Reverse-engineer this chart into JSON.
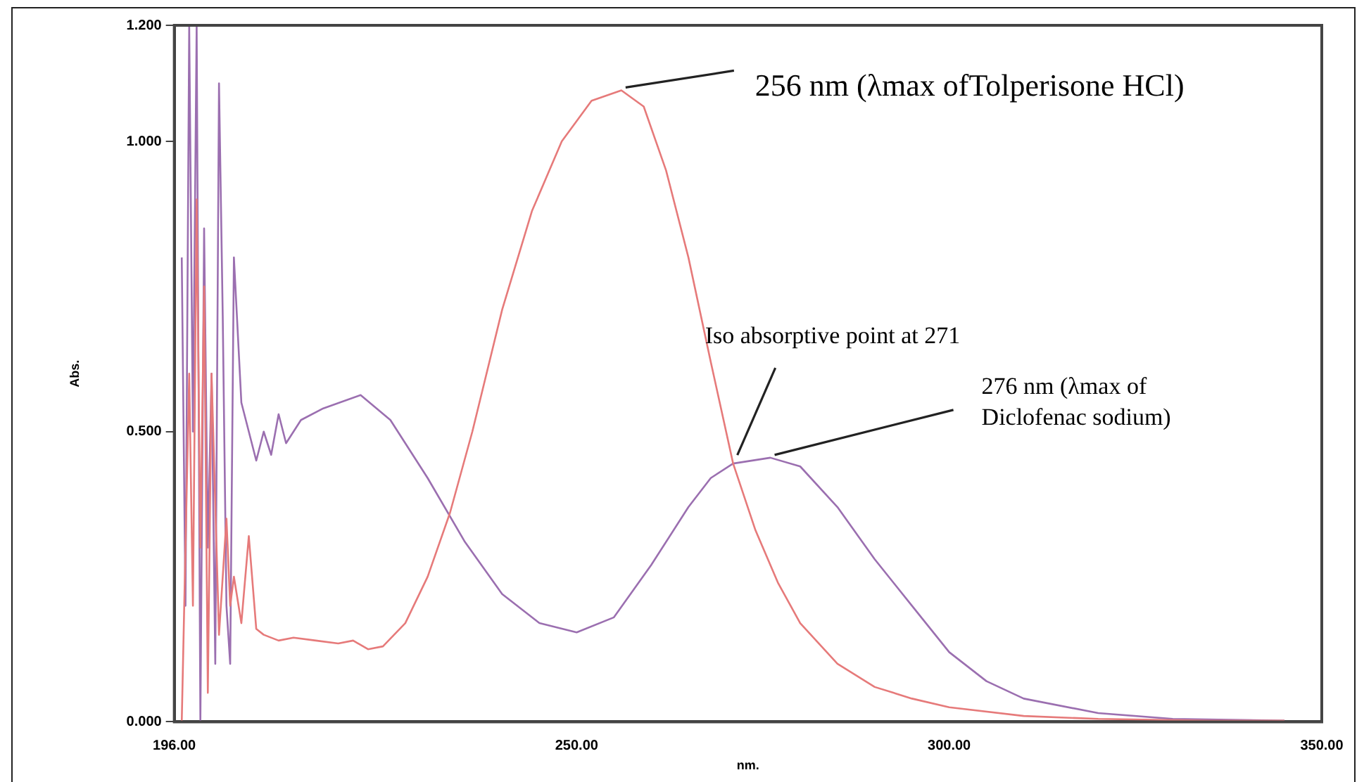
{
  "chart_data": {
    "type": "line",
    "xlabel": "nm.",
    "ylabel": "Abs.",
    "xlim": [
      196,
      350
    ],
    "xticks": [
      {
        "value": 196,
        "label": "196.00"
      },
      {
        "value": 250,
        "label": "250.00"
      },
      {
        "value": 300,
        "label": "300.00"
      },
      {
        "value": 350,
        "label": "350.00"
      }
    ],
    "ylim": [
      0,
      1.2
    ],
    "yticks": [
      {
        "value": 0,
        "label": "0.000"
      },
      {
        "value": 0.5,
        "label": "0.500"
      },
      {
        "value": 1,
        "label": "1.000"
      },
      {
        "value": 1.2,
        "label": "1.200"
      }
    ],
    "marker": "none",
    "line_style": "solid",
    "series": [
      {
        "color": "#e67a7a",
        "x": [
          197,
          198,
          198.5,
          199,
          199.5,
          200,
          200.5,
          201,
          202,
          203,
          203.5,
          204,
          205,
          206,
          207,
          208,
          210,
          212,
          215,
          218,
          220,
          222,
          224,
          227,
          230,
          233,
          236,
          240,
          244,
          248,
          252,
          256,
          259,
          262,
          265,
          268,
          271,
          274,
          277,
          280,
          285,
          290,
          295,
          300,
          310,
          320,
          335,
          345
        ],
        "values": [
          0.0,
          0.6,
          0.2,
          0.9,
          0.3,
          0.75,
          0.05,
          0.6,
          0.15,
          0.35,
          0.2,
          0.25,
          0.17,
          0.32,
          0.16,
          0.15,
          0.14,
          0.145,
          0.14,
          0.135,
          0.14,
          0.125,
          0.13,
          0.17,
          0.25,
          0.36,
          0.5,
          0.71,
          0.88,
          1.0,
          1.07,
          1.088,
          1.06,
          0.95,
          0.8,
          0.62,
          0.445,
          0.33,
          0.24,
          0.17,
          0.1,
          0.06,
          0.04,
          0.025,
          0.01,
          0.005,
          0.002,
          0.002
        ]
      },
      {
        "color": "#9b6fb0",
        "x": [
          197,
          197.5,
          198,
          198.5,
          199,
          199.5,
          200,
          200.5,
          201,
          201.5,
          202,
          202.5,
          203,
          203.5,
          204,
          205,
          206,
          207,
          208,
          209,
          210,
          211,
          213,
          216,
          221,
          225,
          230,
          235,
          240,
          245,
          250,
          255,
          260,
          265,
          268,
          271,
          276,
          280,
          285,
          290,
          295,
          300,
          305,
          310,
          320,
          330,
          345
        ],
        "values": [
          0.8,
          0.2,
          1.2,
          0.5,
          1.2,
          0.0,
          0.85,
          0.3,
          0.6,
          0.1,
          1.1,
          0.7,
          0.2,
          0.1,
          0.8,
          0.55,
          0.5,
          0.45,
          0.5,
          0.46,
          0.53,
          0.48,
          0.52,
          0.54,
          0.563,
          0.52,
          0.42,
          0.31,
          0.22,
          0.17,
          0.154,
          0.18,
          0.27,
          0.37,
          0.42,
          0.445,
          0.455,
          0.44,
          0.37,
          0.28,
          0.2,
          0.12,
          0.07,
          0.04,
          0.015,
          0.005,
          0.002
        ]
      }
    ],
    "annotations": [
      {
        "text": "256 nm (λmax ofTolperisone HCl)",
        "x": 256,
        "y": 1.088
      },
      {
        "text": "Iso absorptive point at 271",
        "x": 271,
        "y": 0.445
      },
      {
        "text": "276 nm (λmax of\nDiclofenac sodium)",
        "x": 276,
        "y": 0.455
      }
    ]
  }
}
